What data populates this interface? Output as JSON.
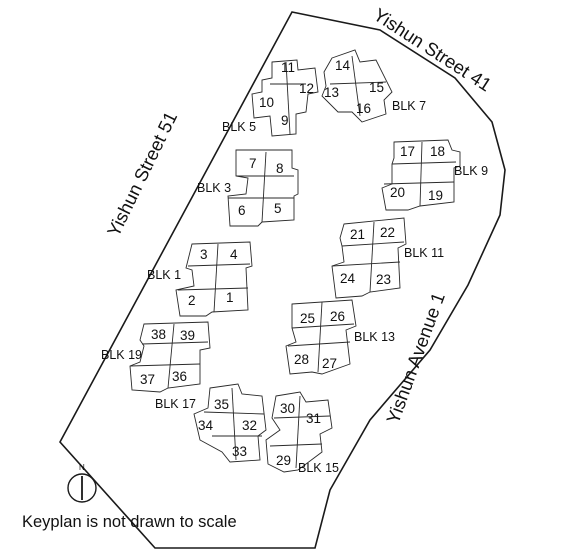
{
  "streets": {
    "north": "Yishun Street 41",
    "west": "Yishun Street 51",
    "east": "Yishun Avenue 1"
  },
  "blocks": [
    {
      "label": "BLK 1",
      "units": [
        "3",
        "4",
        "2",
        "1"
      ]
    },
    {
      "label": "BLK 3",
      "units": [
        "7",
        "8",
        "6",
        "5"
      ]
    },
    {
      "label": "BLK 5",
      "units": [
        "11",
        "12",
        "10",
        "9"
      ]
    },
    {
      "label": "BLK 7",
      "units": [
        "14",
        "15",
        "13",
        "16"
      ]
    },
    {
      "label": "BLK 9",
      "units": [
        "17",
        "18",
        "20",
        "19"
      ]
    },
    {
      "label": "BLK 11",
      "units": [
        "21",
        "22",
        "24",
        "23"
      ]
    },
    {
      "label": "BLK 13",
      "units": [
        "25",
        "26",
        "28",
        "27"
      ]
    },
    {
      "label": "BLK 15",
      "units": [
        "30",
        "31",
        "29"
      ]
    },
    {
      "label": "BLK 17",
      "units": [
        "35",
        "34",
        "32",
        "33"
      ]
    },
    {
      "label": "BLK 19",
      "units": [
        "38",
        "39",
        "37",
        "36"
      ]
    }
  ],
  "compass": {
    "letter": "N"
  },
  "note": "Keyplan is not drawn to scale"
}
